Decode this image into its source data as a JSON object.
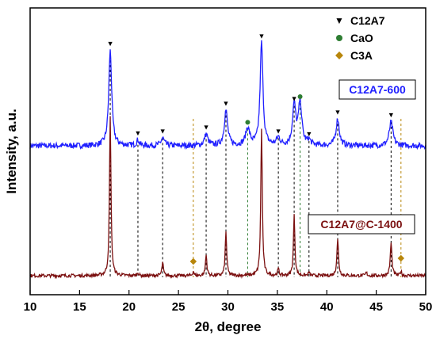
{
  "chart_data": {
    "type": "line",
    "xlabel": "2θ, degree",
    "ylabel": "Intensity, a.u.",
    "xlim": [
      10,
      50
    ],
    "xticks": [
      10,
      15,
      20,
      25,
      30,
      35,
      40,
      45,
      50
    ],
    "y_ticks_shown": false,
    "grid": false,
    "legend": {
      "placement": "top-right",
      "entries": [
        {
          "label": "C12A7",
          "marker": "triangle-down",
          "color": "#000000"
        },
        {
          "label": "CaO",
          "marker": "circle",
          "color": "#2e7d32"
        },
        {
          "label": "C3A",
          "marker": "diamond",
          "color": "#b8860b"
        }
      ]
    },
    "series": [
      {
        "name": "C12A7-600",
        "color": "#2020ff",
        "baseline": 0.0,
        "noise": 0.03,
        "peaks": [
          {
            "x": 18.1,
            "h": 1.0,
            "w": 0.18
          },
          {
            "x": 20.9,
            "h": 0.06,
            "w": 0.15
          },
          {
            "x": 23.4,
            "h": 0.08,
            "w": 0.2
          },
          {
            "x": 27.8,
            "h": 0.12,
            "w": 0.2
          },
          {
            "x": 29.8,
            "h": 0.37,
            "w": 0.2
          },
          {
            "x": 32.0,
            "h": 0.18,
            "w": 0.25
          },
          {
            "x": 33.4,
            "h": 1.08,
            "w": 0.17
          },
          {
            "x": 35.1,
            "h": 0.08,
            "w": 0.2
          },
          {
            "x": 36.7,
            "h": 0.42,
            "w": 0.2
          },
          {
            "x": 37.3,
            "h": 0.45,
            "w": 0.2
          },
          {
            "x": 38.2,
            "h": 0.05,
            "w": 0.2
          },
          {
            "x": 41.1,
            "h": 0.28,
            "w": 0.2
          },
          {
            "x": 46.5,
            "h": 0.25,
            "w": 0.22
          }
        ]
      },
      {
        "name": "C12A7@C-1400",
        "color": "#7b1010",
        "baseline": 0.0,
        "noise": 0.015,
        "peaks": [
          {
            "x": 18.1,
            "h": 1.45,
            "w": 0.09
          },
          {
            "x": 20.9,
            "h": 0.03,
            "w": 0.08
          },
          {
            "x": 23.4,
            "h": 0.12,
            "w": 0.09
          },
          {
            "x": 26.5,
            "h": 0.04,
            "w": 0.08
          },
          {
            "x": 27.8,
            "h": 0.19,
            "w": 0.09
          },
          {
            "x": 29.8,
            "h": 0.4,
            "w": 0.09
          },
          {
            "x": 33.4,
            "h": 1.35,
            "w": 0.09
          },
          {
            "x": 35.1,
            "h": 0.06,
            "w": 0.09
          },
          {
            "x": 36.7,
            "h": 0.55,
            "w": 0.09
          },
          {
            "x": 38.2,
            "h": 0.03,
            "w": 0.08
          },
          {
            "x": 41.1,
            "h": 0.33,
            "w": 0.1
          },
          {
            "x": 44.0,
            "h": 0.03,
            "w": 0.08
          },
          {
            "x": 46.5,
            "h": 0.3,
            "w": 0.1
          },
          {
            "x": 47.5,
            "h": 0.04,
            "w": 0.08
          }
        ]
      }
    ],
    "markers": {
      "C12A7": [
        18.1,
        20.9,
        23.4,
        27.8,
        29.8,
        33.4,
        35.1,
        36.7,
        38.2,
        41.1,
        46.5
      ],
      "CaO": [
        32.0,
        37.3
      ],
      "C3A": [
        26.5,
        47.5
      ]
    },
    "reference_lines": [
      {
        "x": 18.1,
        "color": "#000000"
      },
      {
        "x": 20.9,
        "color": "#000000"
      },
      {
        "x": 23.4,
        "color": "#000000"
      },
      {
        "x": 26.5,
        "color": "#b8860b"
      },
      {
        "x": 27.8,
        "color": "#000000"
      },
      {
        "x": 29.8,
        "color": "#000000"
      },
      {
        "x": 32.0,
        "color": "#2e7d32"
      },
      {
        "x": 35.1,
        "color": "#000000"
      },
      {
        "x": 36.7,
        "color": "#000000"
      },
      {
        "x": 37.3,
        "color": "#2e7d32"
      },
      {
        "x": 38.2,
        "color": "#000000"
      },
      {
        "x": 41.1,
        "color": "#000000"
      },
      {
        "x": 46.5,
        "color": "#000000"
      },
      {
        "x": 47.5,
        "color": "#b8860b"
      }
    ]
  }
}
